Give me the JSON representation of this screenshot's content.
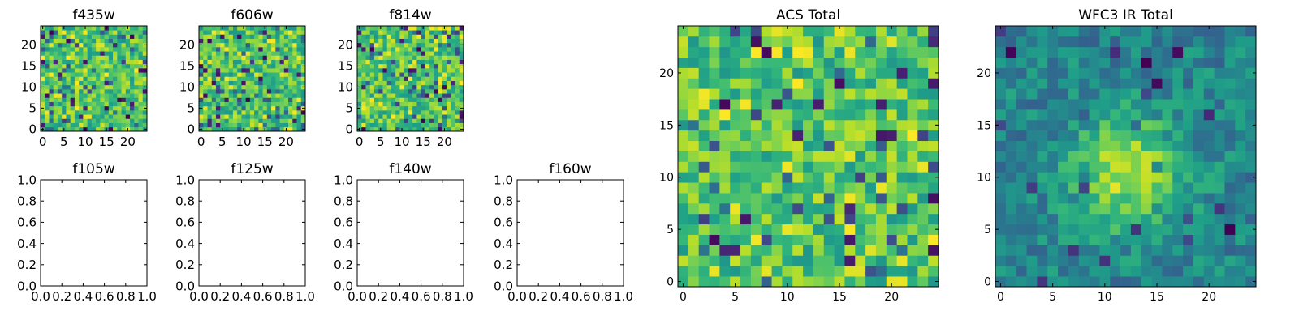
{
  "chart_data": [
    {
      "type": "heatmap",
      "title": "f435w",
      "xticks": [
        "0",
        "5",
        "10",
        "15",
        "20"
      ],
      "yticks": [
        "0",
        "5",
        "10",
        "15",
        "20"
      ],
      "xlim": [
        -0.5,
        24.5
      ],
      "ylim": [
        -0.5,
        24.5
      ],
      "grid_size": 25,
      "colormap": "viridis",
      "texture": "noise",
      "seed": 11
    },
    {
      "type": "heatmap",
      "title": "f606w",
      "xticks": [
        "0",
        "5",
        "10",
        "15",
        "20"
      ],
      "yticks": [
        "0",
        "5",
        "10",
        "15",
        "20"
      ],
      "xlim": [
        -0.5,
        24.5
      ],
      "ylim": [
        -0.5,
        24.5
      ],
      "grid_size": 25,
      "colormap": "viridis",
      "texture": "noise",
      "seed": 23
    },
    {
      "type": "heatmap",
      "title": "f814w",
      "xticks": [
        "0",
        "5",
        "10",
        "15",
        "20"
      ],
      "yticks": [
        "0",
        "5",
        "10",
        "15",
        "20"
      ],
      "xlim": [
        -0.5,
        24.5
      ],
      "ylim": [
        -0.5,
        24.5
      ],
      "grid_size": 25,
      "colormap": "viridis",
      "texture": "noise",
      "seed": 37
    },
    {
      "type": "empty",
      "title": "f105w",
      "xticks": [
        "0.0",
        "0.2",
        "0.4",
        "0.6",
        "0.8",
        "1.0"
      ],
      "yticks": [
        "0.0",
        "0.2",
        "0.4",
        "0.6",
        "0.8",
        "1.0"
      ],
      "xlim": [
        0,
        1
      ],
      "ylim": [
        0,
        1
      ]
    },
    {
      "type": "empty",
      "title": "f125w",
      "xticks": [
        "0.0",
        "0.2",
        "0.4",
        "0.6",
        "0.8",
        "1.0"
      ],
      "yticks": [
        "0.0",
        "0.2",
        "0.4",
        "0.6",
        "0.8",
        "1.0"
      ],
      "xlim": [
        0,
        1
      ],
      "ylim": [
        0,
        1
      ]
    },
    {
      "type": "empty",
      "title": "f140w",
      "xticks": [
        "0.0",
        "0.2",
        "0.4",
        "0.6",
        "0.8",
        "1.0"
      ],
      "yticks": [
        "0.0",
        "0.2",
        "0.4",
        "0.6",
        "0.8",
        "1.0"
      ],
      "xlim": [
        0,
        1
      ],
      "ylim": [
        0,
        1
      ]
    },
    {
      "type": "empty",
      "title": "f160w",
      "xticks": [
        "0.0",
        "0.2",
        "0.4",
        "0.6",
        "0.8",
        "1.0"
      ],
      "yticks": [
        "0.0",
        "0.2",
        "0.4",
        "0.6",
        "0.8",
        "1.0"
      ],
      "xlim": [
        0,
        1
      ],
      "ylim": [
        0,
        1
      ]
    },
    {
      "type": "heatmap",
      "title": "ACS Total",
      "xticks": [
        "0",
        "5",
        "10",
        "15",
        "20"
      ],
      "yticks": [
        "0",
        "5",
        "10",
        "15",
        "20"
      ],
      "xlim": [
        -0.5,
        24.5
      ],
      "ylim": [
        -0.5,
        24.5
      ],
      "grid_size": 25,
      "colormap": "viridis",
      "texture": "noise",
      "seed": 51
    },
    {
      "type": "heatmap",
      "title": "WFC3 IR Total",
      "xticks": [
        "0",
        "5",
        "10",
        "15",
        "20"
      ],
      "yticks": [
        "0",
        "5",
        "10",
        "15",
        "20"
      ],
      "xlim": [
        -0.5,
        24.5
      ],
      "ylim": [
        -0.5,
        24.5
      ],
      "grid_size": 25,
      "colormap": "viridis",
      "texture": "smooth-source",
      "seed": 77
    }
  ]
}
